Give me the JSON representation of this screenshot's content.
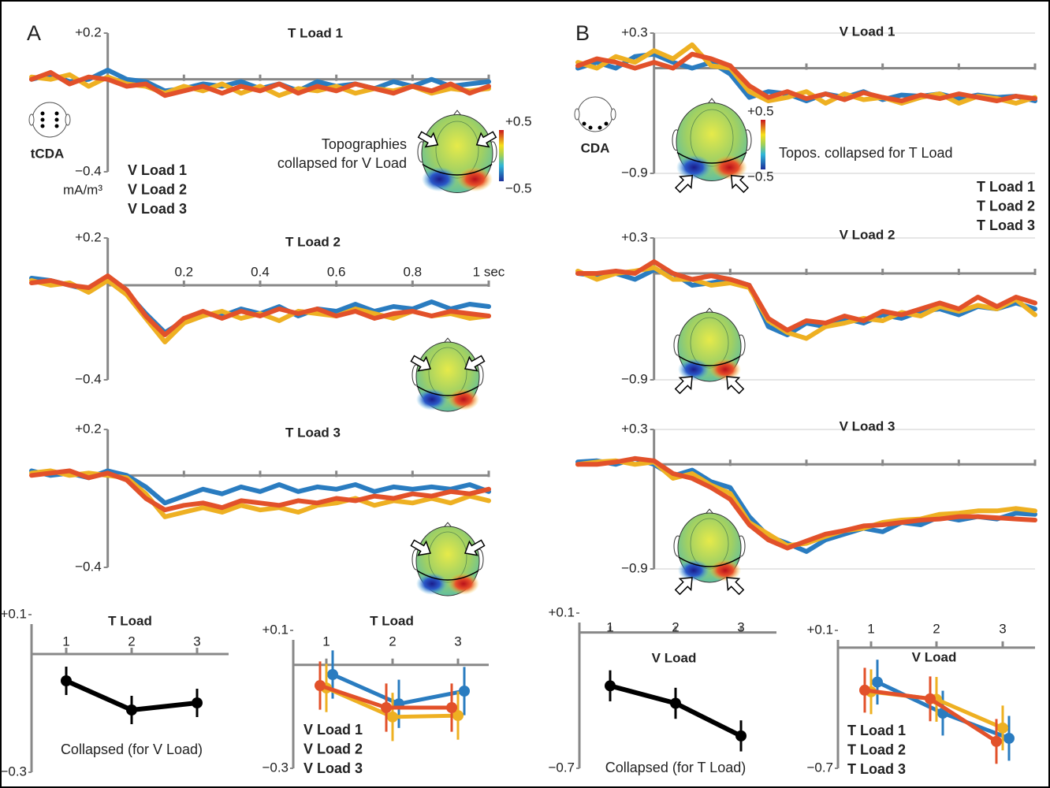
{
  "chart_data": [
    {
      "type": "line",
      "panel_label": "A",
      "title": "T Load 1",
      "electrode_label": "tCDA",
      "ylabel": "mA/m³",
      "topography_label": [
        "Topographies",
        "collapsed for V Load"
      ],
      "colorbar": [
        {
          "value": 0.5,
          "label": "+0.5"
        },
        {
          "value": -0.5,
          "label": "−0.5"
        }
      ],
      "x": [
        -0.2,
        -0.15,
        -0.1,
        -0.05,
        0,
        0.05,
        0.1,
        0.15,
        0.2,
        0.25,
        0.3,
        0.35,
        0.4,
        0.45,
        0.5,
        0.55,
        0.6,
        0.65,
        0.7,
        0.75,
        0.8,
        0.85,
        0.9,
        0.95,
        1.0
      ],
      "xlim": [
        -0.2,
        1.0
      ],
      "xticks": [
        0.2,
        0.4,
        0.6,
        0.8,
        1
      ],
      "xtick_labels": false,
      "ylim": [
        -0.4,
        0.2
      ],
      "yticks": [
        {
          "value": 0.2,
          "label": "+0.2"
        },
        {
          "value": -0.4,
          "label": "−0.4"
        }
      ],
      "grid": false,
      "legend": "lower-left",
      "series": [
        {
          "name": "V Load 1",
          "color": "#2a7cc0",
          "values": [
            0.0,
            0.02,
            -0.01,
            0.0,
            0.04,
            0.0,
            -0.01,
            -0.05,
            -0.04,
            -0.02,
            -0.03,
            -0.01,
            -0.04,
            -0.02,
            -0.05,
            -0.01,
            -0.03,
            -0.02,
            -0.04,
            -0.01,
            -0.03,
            0.0,
            -0.03,
            -0.02,
            -0.01
          ]
        },
        {
          "name": "V Load 2",
          "color": "#eeb022",
          "values": [
            0.01,
            0.0,
            0.02,
            -0.03,
            0.01,
            -0.02,
            -0.03,
            -0.06,
            -0.03,
            -0.05,
            -0.02,
            -0.06,
            -0.03,
            -0.07,
            -0.04,
            -0.05,
            -0.03,
            -0.06,
            -0.04,
            -0.05,
            -0.03,
            -0.06,
            -0.04,
            -0.05,
            -0.04
          ]
        },
        {
          "name": "V Load 3",
          "color": "#e2512a",
          "values": [
            0.0,
            0.03,
            -0.02,
            0.01,
            0.0,
            -0.03,
            -0.02,
            -0.07,
            -0.05,
            -0.03,
            -0.06,
            -0.03,
            -0.05,
            -0.02,
            -0.06,
            -0.03,
            -0.05,
            -0.02,
            -0.04,
            -0.06,
            -0.03,
            -0.05,
            -0.02,
            -0.06,
            -0.03
          ]
        }
      ]
    },
    {
      "type": "line",
      "title": "T Load 2",
      "x": [
        -0.2,
        -0.15,
        -0.1,
        -0.05,
        0,
        0.05,
        0.1,
        0.15,
        0.2,
        0.25,
        0.3,
        0.35,
        0.4,
        0.45,
        0.5,
        0.55,
        0.6,
        0.65,
        0.7,
        0.75,
        0.8,
        0.85,
        0.9,
        0.95,
        1.0
      ],
      "xlim": [
        -0.2,
        1.0
      ],
      "xticks": [
        0.2,
        0.4,
        0.6,
        0.8,
        {
          "value": 1,
          "label": "1 sec"
        }
      ],
      "ylim": [
        -0.4,
        0.2
      ],
      "yticks": [
        {
          "value": 0.2,
          "label": "+0.2"
        },
        {
          "value": -0.4,
          "label": "−0.4"
        }
      ],
      "grid": false,
      "series": [
        {
          "color": "#2a7cc0",
          "values": [
            0.03,
            0.02,
            0.0,
            -0.02,
            0.03,
            -0.03,
            -0.12,
            -0.2,
            -0.15,
            -0.12,
            -0.13,
            -0.1,
            -0.12,
            -0.09,
            -0.13,
            -0.1,
            -0.11,
            -0.08,
            -0.11,
            -0.09,
            -0.1,
            -0.07,
            -0.1,
            -0.08,
            -0.09
          ]
        },
        {
          "color": "#eeb022",
          "values": [
            0.02,
            0.0,
            0.01,
            -0.03,
            0.02,
            -0.04,
            -0.14,
            -0.24,
            -0.16,
            -0.13,
            -0.11,
            -0.14,
            -0.12,
            -0.15,
            -0.11,
            -0.12,
            -0.13,
            -0.1,
            -0.12,
            -0.14,
            -0.11,
            -0.13,
            -0.12,
            -0.14,
            -0.13
          ]
        },
        {
          "color": "#e2512a",
          "values": [
            0.01,
            0.02,
            0.0,
            -0.01,
            0.04,
            -0.02,
            -0.13,
            -0.21,
            -0.14,
            -0.11,
            -0.14,
            -0.11,
            -0.13,
            -0.1,
            -0.12,
            -0.1,
            -0.13,
            -0.11,
            -0.14,
            -0.12,
            -0.11,
            -0.13,
            -0.11,
            -0.12,
            -0.13
          ]
        }
      ]
    },
    {
      "type": "line",
      "title": "T Load 3",
      "x": [
        -0.2,
        -0.15,
        -0.1,
        -0.05,
        0,
        0.05,
        0.1,
        0.15,
        0.2,
        0.25,
        0.3,
        0.35,
        0.4,
        0.45,
        0.5,
        0.55,
        0.6,
        0.65,
        0.7,
        0.75,
        0.8,
        0.85,
        0.9,
        0.95,
        1.0
      ],
      "xlim": [
        -0.2,
        1.0
      ],
      "xticks": [
        0.2,
        0.4,
        0.6,
        0.8,
        1
      ],
      "xtick_labels": false,
      "ylim": [
        -0.4,
        0.2
      ],
      "yticks": [
        {
          "value": 0.2,
          "label": "+0.2"
        },
        {
          "value": -0.4,
          "label": "−0.4"
        }
      ],
      "grid": false,
      "series": [
        {
          "color": "#2a7cc0",
          "values": [
            0.02,
            0.0,
            0.01,
            -0.01,
            0.02,
            0.0,
            -0.05,
            -0.12,
            -0.09,
            -0.06,
            -0.08,
            -0.05,
            -0.07,
            -0.04,
            -0.07,
            -0.05,
            -0.06,
            -0.04,
            -0.07,
            -0.05,
            -0.06,
            -0.05,
            -0.06,
            -0.04,
            -0.07
          ]
        },
        {
          "color": "#eeb022",
          "values": [
            0.01,
            0.02,
            0.0,
            0.01,
            0.0,
            -0.01,
            -0.08,
            -0.18,
            -0.16,
            -0.14,
            -0.16,
            -0.13,
            -0.15,
            -0.14,
            -0.16,
            -0.13,
            -0.12,
            -0.1,
            -0.13,
            -0.11,
            -0.12,
            -0.1,
            -0.12,
            -0.09,
            -0.11
          ]
        },
        {
          "color": "#e2512a",
          "values": [
            0.0,
            0.01,
            0.02,
            -0.01,
            0.01,
            -0.02,
            -0.1,
            -0.15,
            -0.13,
            -0.12,
            -0.14,
            -0.11,
            -0.12,
            -0.13,
            -0.11,
            -0.12,
            -0.1,
            -0.11,
            -0.09,
            -0.1,
            -0.08,
            -0.09,
            -0.07,
            -0.08,
            -0.06
          ]
        }
      ]
    },
    {
      "type": "pointrange",
      "xlabel": "T Load",
      "caption": "Collapsed (for V Load)",
      "categories": [
        "1",
        "2",
        "3"
      ],
      "ylim": [
        -0.3,
        0.1
      ],
      "yticks": [
        {
          "value": 0.1,
          "label": "+0.1"
        },
        {
          "value": -0.3,
          "label": "−0.3"
        }
      ],
      "series": [
        {
          "color": "#000000",
          "values": [
            -0.068,
            -0.142,
            -0.124
          ],
          "errors": [
            0.036,
            0.036,
            0.036
          ]
        }
      ]
    },
    {
      "type": "pointrange",
      "xlabel": "T Load",
      "categories": [
        "1",
        "2",
        "3"
      ],
      "ylim": [
        -0.3,
        0.1
      ],
      "yticks": [
        {
          "value": 0.1,
          "label": "+0.1"
        },
        {
          "value": -0.3,
          "label": "−0.3"
        }
      ],
      "legend": "lower-left",
      "series": [
        {
          "name": "V Load 1",
          "color": "#2a7cc0",
          "values": [
            -0.028,
            -0.113,
            -0.076
          ],
          "errors": [
            0.07,
            0.07,
            0.07
          ]
        },
        {
          "name": "V Load 2",
          "color": "#eeb022",
          "values": [
            -0.067,
            -0.151,
            -0.147
          ],
          "errors": [
            0.07,
            0.07,
            0.07
          ]
        },
        {
          "name": "V Load 3",
          "color": "#e2512a",
          "values": [
            -0.06,
            -0.124,
            -0.124
          ],
          "errors": [
            0.07,
            0.07,
            0.07
          ]
        }
      ]
    },
    {
      "type": "line",
      "panel_label": "B",
      "title": "V Load 1",
      "electrode_label": "CDA",
      "topography_label": [
        "Topos. collapsed for T Load"
      ],
      "colorbar": [
        {
          "value": 0.5,
          "label": "+0.5"
        },
        {
          "value": -0.5,
          "label": "−0.5"
        }
      ],
      "x": [
        -0.2,
        -0.15,
        -0.1,
        -0.05,
        0,
        0.05,
        0.1,
        0.15,
        0.2,
        0.25,
        0.3,
        0.35,
        0.4,
        0.45,
        0.5,
        0.55,
        0.6,
        0.65,
        0.7,
        0.75,
        0.8,
        0.85,
        0.9,
        0.95,
        1.0
      ],
      "xlim": [
        -0.2,
        1.0
      ],
      "xticks": [
        0.2,
        0.4,
        0.6,
        0.8,
        1
      ],
      "xtick_labels": false,
      "ylim": [
        -0.9,
        0.3
      ],
      "yticks": [
        {
          "value": 0.3,
          "label": "+0.3"
        },
        {
          "value": -0.9,
          "label": "−0.9"
        }
      ],
      "grid": true,
      "legend": "right",
      "series": [
        {
          "name": "T Load 1",
          "color": "#2a7cc0",
          "values": [
            0.0,
            0.05,
            0.0,
            0.1,
            0.12,
            0.05,
            0.0,
            0.05,
            -0.05,
            -0.25,
            -0.2,
            -0.22,
            -0.28,
            -0.22,
            -0.25,
            -0.2,
            -0.27,
            -0.23,
            -0.24,
            -0.22,
            -0.26,
            -0.23,
            -0.25,
            -0.24,
            -0.28
          ]
        },
        {
          "name": "T Load 2",
          "color": "#eeb022",
          "values": [
            0.05,
            0.0,
            0.1,
            0.05,
            0.15,
            0.08,
            0.2,
            0.02,
            0.0,
            -0.2,
            -0.28,
            -0.25,
            -0.2,
            -0.3,
            -0.22,
            -0.27,
            -0.25,
            -0.3,
            -0.25,
            -0.22,
            -0.3,
            -0.24,
            -0.26,
            -0.3,
            -0.25
          ]
        },
        {
          "name": "T Load 3",
          "color": "#e2512a",
          "values": [
            0.02,
            0.08,
            0.05,
            0.0,
            0.05,
            0.0,
            0.12,
            0.08,
            0.02,
            -0.15,
            -0.25,
            -0.2,
            -0.26,
            -0.22,
            -0.27,
            -0.21,
            -0.25,
            -0.28,
            -0.23,
            -0.26,
            -0.22,
            -0.25,
            -0.28,
            -0.24,
            -0.26
          ]
        }
      ]
    },
    {
      "type": "line",
      "title": "V Load 2",
      "x": [
        -0.2,
        -0.15,
        -0.1,
        -0.05,
        0,
        0.05,
        0.1,
        0.15,
        0.2,
        0.25,
        0.3,
        0.35,
        0.4,
        0.45,
        0.5,
        0.55,
        0.6,
        0.65,
        0.7,
        0.75,
        0.8,
        0.85,
        0.9,
        0.95,
        1.0
      ],
      "xlim": [
        -0.2,
        1.0
      ],
      "xticks": [
        0.2,
        0.4,
        0.6,
        0.8,
        1
      ],
      "xtick_labels": false,
      "ylim": [
        -0.9,
        0.3
      ],
      "yticks": [
        {
          "value": 0.3,
          "label": "+0.3"
        },
        {
          "value": -0.9,
          "label": "−0.9"
        }
      ],
      "grid": true,
      "series": [
        {
          "color": "#2a7cc0",
          "values": [
            0.0,
            -0.02,
            0.0,
            -0.05,
            0.03,
            0.0,
            -0.1,
            -0.08,
            -0.05,
            -0.1,
            -0.45,
            -0.52,
            -0.42,
            -0.45,
            -0.38,
            -0.42,
            -0.35,
            -0.38,
            -0.32,
            -0.3,
            -0.35,
            -0.28,
            -0.3,
            -0.25,
            -0.3
          ]
        },
        {
          "color": "#eeb022",
          "values": [
            0.02,
            -0.05,
            0.0,
            0.02,
            0.05,
            -0.05,
            -0.05,
            -0.1,
            -0.08,
            -0.12,
            -0.4,
            -0.5,
            -0.55,
            -0.45,
            -0.42,
            -0.38,
            -0.4,
            -0.33,
            -0.36,
            -0.28,
            -0.32,
            -0.27,
            -0.3,
            -0.22,
            -0.35
          ]
        },
        {
          "color": "#e2512a",
          "values": [
            0.0,
            0.0,
            0.02,
            0.0,
            0.1,
            0.0,
            -0.05,
            -0.02,
            -0.05,
            -0.1,
            -0.38,
            -0.48,
            -0.4,
            -0.42,
            -0.36,
            -0.4,
            -0.32,
            -0.35,
            -0.3,
            -0.25,
            -0.3,
            -0.2,
            -0.28,
            -0.2,
            -0.25
          ]
        }
      ]
    },
    {
      "type": "line",
      "title": "V Load 3",
      "x": [
        -0.2,
        -0.15,
        -0.1,
        -0.05,
        0,
        0.05,
        0.1,
        0.15,
        0.2,
        0.25,
        0.3,
        0.35,
        0.4,
        0.45,
        0.5,
        0.55,
        0.6,
        0.65,
        0.7,
        0.75,
        0.8,
        0.85,
        0.9,
        0.95,
        1.0
      ],
      "xlim": [
        -0.2,
        1.0
      ],
      "xticks": [
        0.2,
        0.4,
        0.6,
        0.8,
        1
      ],
      "xtick_labels": false,
      "ylim": [
        -0.9,
        0.3
      ],
      "yticks": [
        {
          "value": 0.3,
          "label": "+0.3"
        },
        {
          "value": -0.9,
          "label": "−0.9"
        }
      ],
      "grid": true,
      "series": [
        {
          "color": "#2a7cc0",
          "values": [
            0.02,
            0.03,
            0.0,
            0.05,
            0.0,
            -0.1,
            -0.05,
            -0.15,
            -0.2,
            -0.45,
            -0.62,
            -0.68,
            -0.75,
            -0.65,
            -0.6,
            -0.55,
            -0.58,
            -0.5,
            -0.52,
            -0.45,
            -0.48,
            -0.45,
            -0.47,
            -0.42,
            -0.43
          ]
        },
        {
          "color": "#eeb022",
          "values": [
            0.0,
            0.02,
            0.03,
            0.0,
            0.02,
            -0.12,
            -0.08,
            -0.18,
            -0.25,
            -0.5,
            -0.6,
            -0.7,
            -0.68,
            -0.62,
            -0.57,
            -0.55,
            -0.5,
            -0.48,
            -0.47,
            -0.43,
            -0.42,
            -0.4,
            -0.4,
            -0.38,
            -0.4
          ]
        },
        {
          "color": "#e2512a",
          "values": [
            0.0,
            0.0,
            0.02,
            0.05,
            0.03,
            -0.08,
            -0.12,
            -0.2,
            -0.3,
            -0.52,
            -0.65,
            -0.72,
            -0.66,
            -0.6,
            -0.57,
            -0.53,
            -0.52,
            -0.5,
            -0.48,
            -0.47,
            -0.45,
            -0.45,
            -0.46,
            -0.47,
            -0.48
          ]
        }
      ]
    },
    {
      "type": "pointrange",
      "xlabel": "V Load",
      "caption": "Collapsed (for T Load)",
      "categories": [
        "1",
        "2",
        "3"
      ],
      "ylim": [
        -0.7,
        0.1
      ],
      "yticks": [
        {
          "value": 0.1,
          "label": "+0.1"
        },
        {
          "value": -0.7,
          "label": "−0.7"
        }
      ],
      "series": [
        {
          "color": "#000000",
          "values": [
            -0.275,
            -0.365,
            -0.533
          ],
          "errors": [
            0.08,
            0.08,
            0.08
          ]
        }
      ]
    },
    {
      "type": "pointrange",
      "xlabel": "V Load",
      "categories": [
        "1",
        "2",
        "3"
      ],
      "ylim": [
        -0.7,
        0.1
      ],
      "yticks": [
        {
          "value": 0.1,
          "label": "+0.1"
        },
        {
          "value": -0.7,
          "label": "−0.7"
        }
      ],
      "legend": "lower-left",
      "series": [
        {
          "name": "T Load 1",
          "color": "#2a7cc0",
          "values": [
            -0.2,
            -0.38,
            -0.526
          ],
          "errors": [
            0.13,
            0.13,
            0.13
          ]
        },
        {
          "name": "T Load 2",
          "color": "#eeb022",
          "values": [
            -0.256,
            -0.3,
            -0.466
          ],
          "errors": [
            0.13,
            0.13,
            0.13
          ]
        },
        {
          "name": "T Load 3",
          "color": "#e2512a",
          "values": [
            -0.247,
            -0.297,
            -0.544
          ],
          "errors": [
            0.13,
            0.13,
            0.13
          ]
        }
      ]
    }
  ]
}
